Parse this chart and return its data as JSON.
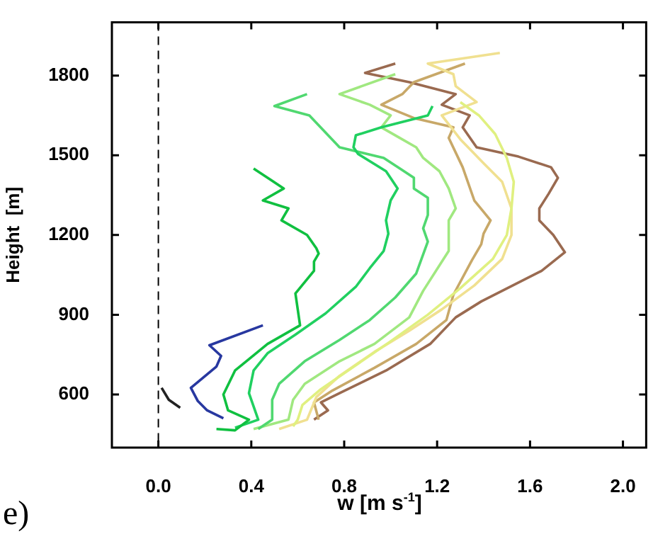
{
  "chart_data": {
    "type": "line",
    "xlabel": "w  [m s$^{-1}$]",
    "ylabel": "Height  [m]",
    "annotations": [
      "e)"
    ],
    "xlim": [
      -0.2,
      2.1
    ],
    "ylim": [
      400,
      2000
    ],
    "xticks": [
      {
        "value": 0,
        "label": "0.0"
      },
      0.4,
      0.8,
      1.2,
      1.6,
      {
        "value": 2,
        "label": "2.0"
      }
    ],
    "yticks": [
      600,
      900,
      1200,
      1500,
      1800
    ],
    "marker": "none",
    "ref_lines": [
      {
        "axis": "x",
        "value": 0,
        "label": null,
        "color": "#000000",
        "line_style": "dashed"
      }
    ],
    "series": [
      {
        "color": "#222222",
        "x": [
          0.014,
          0.045,
          0.094
        ],
        "values": [
          625,
          580,
          550
        ]
      },
      {
        "color": "#2838a0",
        "x": [
          0.45,
          0.22,
          0.27,
          0.25,
          0.14,
          0.17,
          0.21,
          0.28
        ],
        "values": [
          860,
          785,
          745,
          705,
          625,
          575,
          540,
          510
        ]
      },
      {
        "color": "#10c040",
        "x": [
          0.41,
          0.54,
          0.45,
          0.56,
          0.53,
          0.64,
          0.68,
          0.69,
          0.67,
          0.67,
          0.59,
          0.61,
          0.47,
          0.33,
          0.28,
          0.3,
          0.39,
          0.33,
          0.25
        ],
        "values": [
          1450,
          1375,
          1330,
          1300,
          1255,
          1200,
          1150,
          1130,
          1100,
          1065,
          980,
          860,
          790,
          690,
          600,
          540,
          505,
          465,
          470
        ]
      },
      {
        "color": "#20d060",
        "x": [
          1.18,
          1.16,
          0.96,
          0.85,
          0.84,
          0.86,
          0.98,
          1.03,
          1.0,
          0.98,
          0.99,
          0.97,
          0.91,
          0.85,
          0.72,
          0.59,
          0.47,
          0.41,
          0.39,
          0.43,
          0.33
        ],
        "values": [
          1685,
          1650,
          1605,
          1575,
          1530,
          1505,
          1440,
          1375,
          1330,
          1255,
          1205,
          1140,
          1075,
          1005,
          905,
          825,
          755,
          690,
          605,
          505,
          475
        ]
      },
      {
        "color": "#50d870",
        "x": [
          0.64,
          0.5,
          0.65,
          0.78,
          0.97,
          1.04,
          1.1,
          1.1,
          1.16,
          1.16,
          1.14,
          1.16,
          1.11,
          1.02,
          0.91,
          0.78,
          0.63,
          0.52,
          0.49,
          0.49,
          0.43
        ],
        "values": [
          1730,
          1685,
          1650,
          1530,
          1490,
          1450,
          1415,
          1375,
          1340,
          1275,
          1225,
          1175,
          1055,
          965,
          880,
          805,
          725,
          640,
          580,
          505,
          470
        ]
      },
      {
        "color": "#a0e880",
        "x": [
          1.02,
          0.78,
          0.91,
          1.0,
          0.96,
          1.04,
          1.11,
          1.14,
          1.21,
          1.25,
          1.28,
          1.25,
          1.25,
          1.14,
          1.08,
          0.93,
          0.78,
          0.63,
          0.58,
          0.56,
          0.41
        ],
        "values": [
          1805,
          1730,
          1690,
          1650,
          1605,
          1565,
          1530,
          1490,
          1440,
          1375,
          1300,
          1255,
          1140,
          990,
          890,
          790,
          725,
          640,
          580,
          505,
          470
        ]
      },
      {
        "color": "#e0f080",
        "x": [
          1.3,
          1.38,
          1.45,
          1.5,
          1.53,
          1.52,
          1.5,
          1.44,
          1.3,
          1.16,
          1.0,
          0.85,
          0.7,
          0.62,
          0.6,
          0.58
        ],
        "values": [
          1700,
          1650,
          1580,
          1490,
          1400,
          1300,
          1200,
          1110,
          1000,
          900,
          800,
          710,
          620,
          560,
          505,
          480
        ]
      },
      {
        "color": "#f0e090",
        "x": [
          1.47,
          1.16,
          1.27,
          1.28,
          1.37,
          1.22,
          1.3,
          1.4,
          1.48,
          1.52,
          1.52,
          1.48,
          1.36,
          1.22,
          1.08,
          0.93,
          0.78,
          0.68,
          0.64,
          0.52
        ],
        "values": [
          1885,
          1845,
          1805,
          1760,
          1700,
          1650,
          1560,
          1470,
          1400,
          1300,
          1200,
          1110,
          1010,
          920,
          840,
          760,
          670,
          590,
          505,
          470
        ]
      },
      {
        "color": "#c8a868",
        "x": [
          1.32,
          1.1,
          1.05,
          0.96,
          1.1,
          1.27,
          1.25,
          1.31,
          1.36,
          1.43,
          1.4,
          1.39,
          1.35,
          1.27,
          1.24,
          1.11,
          0.93,
          0.75,
          0.67,
          0.69
        ],
        "values": [
          1845,
          1775,
          1730,
          1690,
          1640,
          1605,
          1565,
          1455,
          1330,
          1255,
          1205,
          1165,
          1105,
          975,
          880,
          790,
          700,
          615,
          570,
          505
        ]
      },
      {
        "color": "#9a6a50",
        "x": [
          1.02,
          0.89,
          1.08,
          1.28,
          1.22,
          1.34,
          1.31,
          1.37,
          1.55,
          1.69,
          1.72,
          1.68,
          1.64,
          1.64,
          1.7,
          1.75,
          1.65,
          1.39,
          1.28,
          1.17,
          0.98,
          0.78,
          0.7,
          0.73,
          0.67
        ],
        "values": [
          1845,
          1810,
          1775,
          1730,
          1690,
          1650,
          1605,
          1530,
          1495,
          1455,
          1415,
          1355,
          1300,
          1255,
          1200,
          1135,
          1065,
          950,
          890,
          790,
          690,
          605,
          570,
          540,
          505
        ]
      }
    ]
  }
}
